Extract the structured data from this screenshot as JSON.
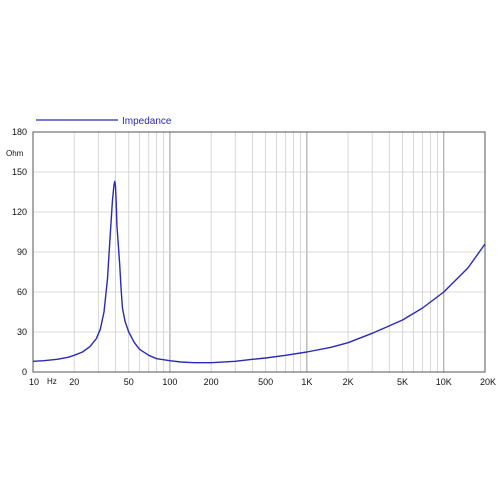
{
  "chart_data": {
    "type": "line",
    "x_scale": "log",
    "xlim": [
      10,
      20000
    ],
    "ylim": [
      0,
      180
    ],
    "grid": true,
    "legend_position": "top-left",
    "y_unit": "Ohm",
    "x_unit": "Hz",
    "line_color": "#2a2ab8",
    "x_ticks": [
      {
        "value": 10,
        "label": "10"
      },
      {
        "value": 20,
        "label": "20"
      },
      {
        "value": 50,
        "label": "50"
      },
      {
        "value": 100,
        "label": "100"
      },
      {
        "value": 200,
        "label": "200"
      },
      {
        "value": 500,
        "label": "500"
      },
      {
        "value": 1000,
        "label": "1K"
      },
      {
        "value": 2000,
        "label": "2K"
      },
      {
        "value": 5000,
        "label": "5K"
      },
      {
        "value": 10000,
        "label": "10K"
      },
      {
        "value": 20000,
        "label": "20K"
      }
    ],
    "y_ticks": [
      {
        "value": 0,
        "label": "0"
      },
      {
        "value": 30,
        "label": "30"
      },
      {
        "value": 60,
        "label": "60"
      },
      {
        "value": 90,
        "label": "90"
      },
      {
        "value": 120,
        "label": "120"
      },
      {
        "value": 150,
        "label": "150"
      },
      {
        "value": 180,
        "label": "180"
      }
    ],
    "series": [
      {
        "name": "Impedance",
        "x": [
          10,
          12,
          15,
          18,
          20,
          23,
          26,
          29,
          31,
          33,
          35,
          36.5,
          38,
          39,
          39.5,
          40,
          40.5,
          41,
          42,
          43,
          44,
          45,
          47,
          50,
          55,
          60,
          70,
          80,
          100,
          120,
          150,
          200,
          300,
          400,
          500,
          700,
          1000,
          1500,
          2000,
          3000,
          5000,
          7000,
          10000,
          15000,
          20000
        ],
        "y": [
          8,
          8.5,
          9.5,
          11,
          12.5,
          15,
          19,
          25,
          32,
          45,
          70,
          100,
          128,
          140,
          143,
          140,
          128,
          110,
          95,
          80,
          62,
          48,
          38,
          30,
          22,
          17,
          12.5,
          10,
          8.5,
          7.5,
          7,
          7,
          8,
          9.5,
          10.5,
          12.5,
          15,
          18.5,
          22,
          29,
          39,
          48,
          60,
          78,
          96
        ]
      }
    ]
  }
}
